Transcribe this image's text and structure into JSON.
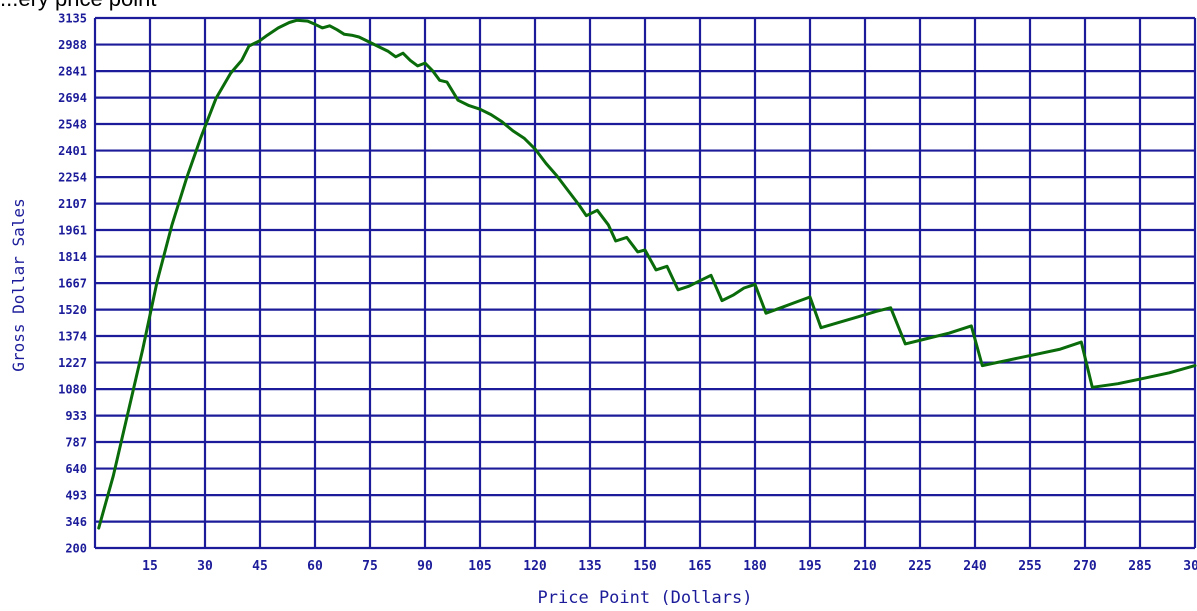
{
  "caption": "...ery price point",
  "chart_data": {
    "type": "line",
    "title": "",
    "xlabel": "Price Point (Dollars)",
    "ylabel": "Gross Dollar Sales",
    "xlim": [
      0,
      300
    ],
    "ylim": [
      200,
      3135
    ],
    "grid": true,
    "x_ticks": [
      15,
      30,
      45,
      60,
      75,
      90,
      105,
      120,
      135,
      150,
      165,
      180,
      195,
      210,
      225,
      240,
      255,
      270,
      285,
      300
    ],
    "y_ticks": [
      200,
      346,
      493,
      640,
      787,
      933,
      1080,
      1227,
      1374,
      1520,
      1667,
      1814,
      1961,
      2107,
      2254,
      2401,
      2548,
      2694,
      2841,
      2988,
      3135
    ],
    "x_tick_labels": [
      "15",
      "30",
      "45",
      "60",
      "75",
      "90",
      "105",
      "120",
      "135",
      "150",
      "165",
      "180",
      "195",
      "210",
      "225",
      "240",
      "255",
      "270",
      "285",
      "300"
    ],
    "y_tick_labels": [
      "200",
      "346",
      "493",
      "640",
      "787",
      "933",
      "1080",
      "1227",
      "1374",
      "1520",
      "1667",
      "1814",
      "1961",
      "2107",
      "2254",
      "2401",
      "2548",
      "2694",
      "2841",
      "2988",
      "3135"
    ],
    "series": [
      {
        "color": "#0a6b0a",
        "points": [
          [
            1,
            310
          ],
          [
            5,
            600
          ],
          [
            9,
            950
          ],
          [
            13,
            1300
          ],
          [
            17,
            1680
          ],
          [
            21,
            1990
          ],
          [
            25,
            2250
          ],
          [
            29,
            2480
          ],
          [
            33,
            2690
          ],
          [
            37,
            2830
          ],
          [
            40,
            2900
          ],
          [
            42,
            2980
          ],
          [
            45,
            3010
          ],
          [
            47,
            3040
          ],
          [
            50,
            3080
          ],
          [
            53,
            3110
          ],
          [
            55,
            3122
          ],
          [
            58,
            3118
          ],
          [
            60,
            3100
          ],
          [
            62,
            3080
          ],
          [
            64,
            3092
          ],
          [
            66,
            3070
          ],
          [
            68,
            3045
          ],
          [
            70,
            3040
          ],
          [
            72,
            3030
          ],
          [
            75,
            3000
          ],
          [
            77,
            2980
          ],
          [
            80,
            2950
          ],
          [
            82,
            2920
          ],
          [
            84,
            2940
          ],
          [
            86,
            2900
          ],
          [
            88,
            2870
          ],
          [
            90,
            2885
          ],
          [
            92,
            2845
          ],
          [
            94,
            2790
          ],
          [
            96,
            2780
          ],
          [
            99,
            2680
          ],
          [
            102,
            2650
          ],
          [
            105,
            2630
          ],
          [
            108,
            2600
          ],
          [
            111,
            2560
          ],
          [
            114,
            2510
          ],
          [
            117,
            2470
          ],
          [
            120,
            2410
          ],
          [
            123,
            2330
          ],
          [
            126,
            2260
          ],
          [
            129,
            2180
          ],
          [
            132,
            2100
          ],
          [
            134,
            2040
          ],
          [
            137,
            2070
          ],
          [
            140,
            1990
          ],
          [
            142,
            1900
          ],
          [
            145,
            1920
          ],
          [
            148,
            1840
          ],
          [
            150,
            1850
          ],
          [
            153,
            1740
          ],
          [
            156,
            1760
          ],
          [
            159,
            1630
          ],
          [
            162,
            1650
          ],
          [
            165,
            1680
          ],
          [
            168,
            1710
          ],
          [
            171,
            1570
          ],
          [
            174,
            1600
          ],
          [
            177,
            1640
          ],
          [
            180,
            1660
          ],
          [
            183,
            1500
          ],
          [
            187,
            1530
          ],
          [
            191,
            1560
          ],
          [
            195,
            1590
          ],
          [
            198,
            1420
          ],
          [
            203,
            1450
          ],
          [
            208,
            1480
          ],
          [
            213,
            1510
          ],
          [
            217,
            1530
          ],
          [
            221,
            1330
          ],
          [
            227,
            1360
          ],
          [
            233,
            1390
          ],
          [
            239,
            1430
          ],
          [
            242,
            1210
          ],
          [
            249,
            1240
          ],
          [
            256,
            1270
          ],
          [
            263,
            1300
          ],
          [
            269,
            1340
          ],
          [
            272,
            1090
          ],
          [
            279,
            1110
          ],
          [
            286,
            1140
          ],
          [
            293,
            1170
          ],
          [
            300,
            1210
          ]
        ]
      }
    ]
  }
}
